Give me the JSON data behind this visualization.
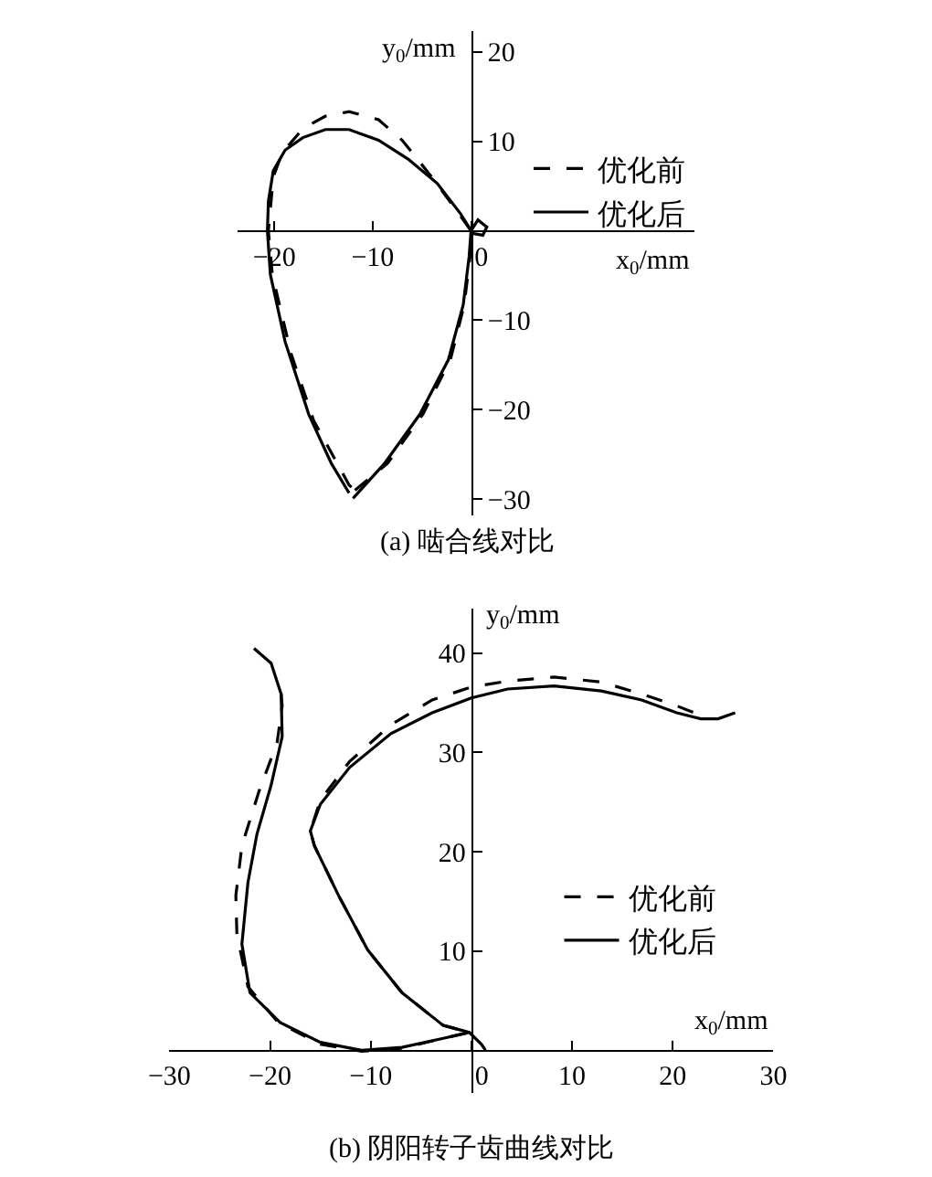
{
  "chart_data": [
    {
      "type": "line",
      "title": "(a) 啮合线对比",
      "xlabel": "x$_{0}$/mm",
      "ylabel": "y$_{0}$/mm",
      "xlim": [
        -23.7,
        22.7
      ],
      "ylim": [
        -31.8,
        22.3
      ],
      "xticks": [
        {
          "value": -20,
          "label": "−20"
        },
        {
          "value": -10,
          "label": "−10"
        },
        0
      ],
      "yticks": [
        {
          "value": -30,
          "label": "−30"
        },
        {
          "value": -20,
          "label": "−20"
        },
        {
          "value": -10,
          "label": "−10"
        },
        10,
        20
      ],
      "legend": "right",
      "series": [
        {
          "name": "优化前",
          "color": "#000000",
          "line_style": "dashed",
          "x": [
            -11.8,
            -8.5,
            -4.9,
            -2.1,
            -0.7,
            -0.1,
            0,
            -1.7,
            -4.0,
            -7.0,
            -9.4,
            -12.4,
            -14.8,
            -17.1,
            -19.2,
            -20.1,
            -20.6,
            -20.2,
            -18.3,
            -16.0,
            -12.4,
            -12.0
          ],
          "values": [
            -29.0,
            -26.0,
            -20.5,
            -14.4,
            -8.3,
            -2.9,
            0,
            2.6,
            6.0,
            10.1,
            12.4,
            13.3,
            12.8,
            11.4,
            8.7,
            6.0,
            0,
            -4.9,
            -13.7,
            -21.2,
            -28.4,
            -28.8
          ]
        },
        {
          "name": "优化后",
          "color": "#000000",
          "line_style": "solid",
          "x": [
            -12.0,
            -8.8,
            -5.2,
            -2.3,
            -0.8,
            -0.2,
            0,
            0.1,
            1.2,
            1.6,
            0.7,
            0,
            -1.07,
            -3.45,
            -6.4,
            -9.4,
            -12.4,
            -14.8,
            -17.1,
            -18.9,
            -20.1,
            -20.6,
            -20.7,
            -20.4,
            -18.9,
            -16.5,
            -14.2,
            -12.4
          ],
          "values": [
            -29.9,
            -26.0,
            -20.5,
            -14.4,
            -8.3,
            -2.9,
            0,
            -0.3,
            -0.5,
            0.4,
            1.2,
            0,
            1.9,
            5.3,
            8.0,
            10.1,
            11.3,
            11.3,
            10.4,
            9.0,
            6.7,
            3.3,
            0,
            -4.9,
            -12.4,
            -20.5,
            -26.0,
            -29.3
          ]
        }
      ]
    },
    {
      "type": "line",
      "title": "(b) 阴阳转子齿曲线对比",
      "xlabel": "x$_{0}$/mm",
      "ylabel": "y$_{0}$/mm",
      "xlim": [
        -30,
        30
      ],
      "ylim": [
        -4.3,
        44.5
      ],
      "xticks": [
        {
          "value": -30,
          "label": "−30"
        },
        {
          "value": -20,
          "label": "−20"
        },
        {
          "value": -10,
          "label": "−10"
        },
        0,
        10,
        20,
        30
      ],
      "yticks": [
        10,
        20,
        30,
        40
      ],
      "legend": "bottom right",
      "series": [
        {
          "name": "优化前",
          "color": "#000000",
          "line_style": "dashed",
          "x": [
            -18.9,
            -18.8,
            -19.3,
            -21.1,
            -22.8,
            -23.4,
            -23.3,
            -22.2,
            -19.2,
            -15.0,
            -10.9,
            -6.9,
            -2.8,
            -0.2,
            -2.8,
            -6.9,
            -10.3,
            -13.2,
            -15.6,
            -16.0,
            -15.0,
            -12.1,
            -8.0,
            -3.9,
            0,
            3.6,
            8.2,
            12.9,
            16.9,
            20.4,
            22.4
          ],
          "values": [
            35.9,
            34.7,
            31.0,
            26.1,
            20.6,
            15.6,
            11.7,
            6.4,
            2.8,
            0.6,
            -0.1,
            0.2,
            1.2,
            1.8,
            2.5,
            5.8,
            10.1,
            15.6,
            20.6,
            22.1,
            25.2,
            29.1,
            32.8,
            35.3,
            36.6,
            37.2,
            37.6,
            37.1,
            35.9,
            34.7,
            33.9
          ]
        },
        {
          "name": "优化后",
          "color": "#000000",
          "line_style": "solid",
          "x": [
            -21.6,
            -19.9,
            -18.9,
            -18.8,
            -19.9,
            -21.3,
            -22.2,
            -22.8,
            -22.0,
            -19.0,
            -15.0,
            -10.9,
            -6.9,
            -2.8,
            -0.2,
            1.0,
            1.4,
            null,
            -0.2,
            -2.8,
            -6.9,
            -10.3,
            -13.2,
            -15.6,
            -16.0,
            -15.0,
            -12.1,
            -8.0,
            -3.9,
            0,
            3.6,
            8.2,
            12.9,
            16.9,
            20.4,
            22.8,
            24.5,
            26.2
          ],
          "values": [
            40.5,
            39.0,
            35.9,
            31.6,
            26.7,
            21.8,
            16.9,
            10.7,
            5.8,
            2.8,
            0.8,
            0,
            0.3,
            1.2,
            1.8,
            0.6,
            0,
            null,
            1.8,
            2.5,
            5.8,
            10.1,
            15.6,
            20.6,
            22.1,
            24.8,
            28.5,
            31.9,
            34.0,
            35.5,
            36.4,
            36.7,
            36.2,
            35.3,
            34.0,
            33.4,
            33.4,
            34.0
          ]
        }
      ]
    }
  ]
}
